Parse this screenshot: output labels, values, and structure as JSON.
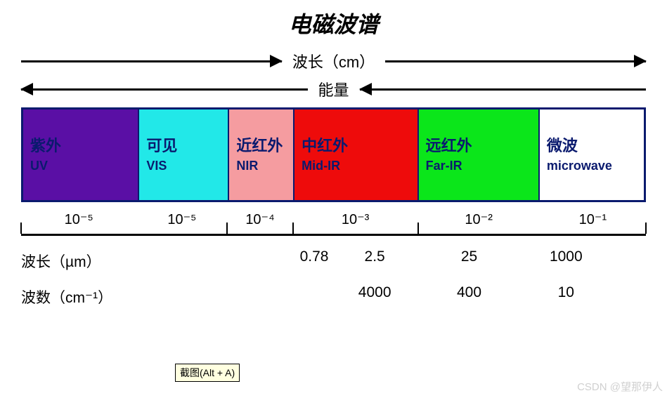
{
  "title": "电磁波谱",
  "wavelength_axis_label": "波长（cm）",
  "energy_axis_label": "能量",
  "bands": [
    {
      "cn": "紫外",
      "en": "UV",
      "bg": "#5a0fa5",
      "fg": "#0a1a6e",
      "widthPct": 18.5
    },
    {
      "cn": "可见",
      "en": "VIS",
      "bg": "#22e8e8",
      "fg": "#0a1a6e",
      "widthPct": 14.5
    },
    {
      "cn": "近红外",
      "en": "NIR",
      "bg": "#f59ca0",
      "fg": "#0a1a6e",
      "widthPct": 10.5
    },
    {
      "cn": "中红外",
      "en": "Mid-IR",
      "bg": "#ee0b0b",
      "fg": "#0a1a6e",
      "widthPct": 20
    },
    {
      "cn": "远红外",
      "en": "Far-IR",
      "bg": "#0be61a",
      "fg": "#0a1a6e",
      "widthPct": 19.5
    },
    {
      "cn": "微波",
      "en": "microwave",
      "bg": "#ffffff",
      "fg": "#0a1a6e",
      "widthPct": 17
    }
  ],
  "cm_scale": [
    {
      "val": "10⁻⁵",
      "widthPct": 18.5
    },
    {
      "val": "10⁻⁵",
      "widthPct": 14.5
    },
    {
      "val": "10⁻⁴",
      "widthPct": 10.5
    },
    {
      "val": "10⁻³",
      "widthPct": 20
    },
    {
      "val": "10⁻²",
      "widthPct": 19.5
    },
    {
      "val": "10⁻¹",
      "widthPct": 17
    }
  ],
  "axis_ticks_pct": [
    0,
    33,
    43.5,
    63.5,
    100
  ],
  "wavelength_um": {
    "label": "波长（µm）",
    "values": [
      {
        "val": "0.78",
        "leftPct": 25,
        "widthPct": 13
      },
      {
        "val": "2.5",
        "leftPct": 38,
        "widthPct": 12
      },
      {
        "val": "25",
        "leftPct": 56,
        "widthPct": 15
      },
      {
        "val": "1000",
        "leftPct": 76,
        "widthPct": 15
      }
    ]
  },
  "wavenumber": {
    "label": "波数（cm⁻¹）",
    "values": [
      {
        "val": "4000",
        "leftPct": 38,
        "widthPct": 12
      },
      {
        "val": "400",
        "leftPct": 56,
        "widthPct": 15
      },
      {
        "val": "10",
        "leftPct": 76,
        "widthPct": 15
      }
    ]
  },
  "tooltip": {
    "text": "截图(Alt + A)",
    "leftPx": 249,
    "topPx": 518
  },
  "watermark": "CSDN @望那伊人",
  "colors": {
    "border": "#0a1a6e",
    "text": "#000000",
    "background": "#ffffff"
  }
}
